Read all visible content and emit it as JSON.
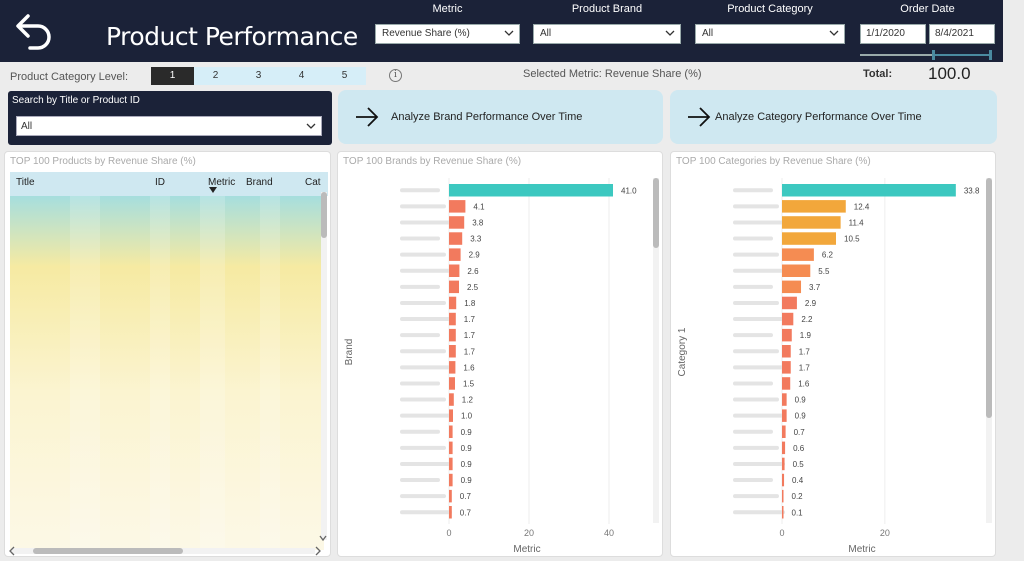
{
  "header": {
    "title": "Product Performance",
    "back_icon": "back-arrow-icon",
    "filters": {
      "metric": {
        "label": "Metric",
        "value": "Revenue Share (%)"
      },
      "brand": {
        "label": "Product Brand",
        "value": "All"
      },
      "category": {
        "label": "Product Category",
        "value": "All"
      },
      "order_date": {
        "label": "Order Date",
        "start": "1/1/2020",
        "end": "8/4/2021"
      }
    }
  },
  "level": {
    "label": "Product Category Level:",
    "options": [
      "1",
      "2",
      "3",
      "4",
      "5"
    ],
    "selected": "1"
  },
  "selected_metric": "Selected Metric: Revenue Share (%)",
  "total": {
    "label": "Total:",
    "value": "100.0"
  },
  "search": {
    "label": "Search by Title or Product ID",
    "value": "All"
  },
  "buttons": {
    "brand_over_time": "Analyze Brand Performance Over Time",
    "category_over_time": "Analyze Category Performance Over Time"
  },
  "products_table": {
    "title": "TOP 100 Products by Revenue Share (%)",
    "columns": [
      "Title",
      "ID",
      "Metric",
      "Brand",
      "Cat"
    ]
  },
  "colors": {
    "header_bg": "#1b2238",
    "accent_teal": "#3cc8c0",
    "bar_orange": "#f27a5e",
    "bar_amber": "#f2a73b",
    "bar_light_orange": "#f58c52",
    "button_bg": "#cfe8f1"
  },
  "chart_data": [
    {
      "type": "bar",
      "orientation": "horizontal",
      "title": "TOP 100 Brands by Revenue Share (%)",
      "xlabel": "Metric",
      "ylabel": "Brand",
      "xticks": [
        "0",
        "20",
        "40"
      ],
      "xlim": [
        0,
        44
      ],
      "values": [
        41.0,
        4.1,
        3.8,
        3.3,
        2.9,
        2.6,
        2.5,
        1.8,
        1.7,
        1.7,
        1.7,
        1.6,
        1.5,
        1.2,
        1.0,
        0.9,
        0.9,
        0.9,
        0.9,
        0.7,
        0.7
      ],
      "labels": [
        "41.0",
        "4.1",
        "3.8",
        "3.3",
        "2.9",
        "2.6",
        "2.5",
        "1.8",
        "1.7",
        "1.7",
        "1.7",
        "1.6",
        "1.5",
        "1.2",
        "1.0",
        "0.9",
        "0.9",
        "0.9",
        "0.9",
        "0.7",
        "0.7"
      ]
    },
    {
      "type": "bar",
      "orientation": "horizontal",
      "title": "TOP 100 Categories by Revenue Share (%)",
      "xlabel": "Metric",
      "ylabel": "Category 1",
      "xticks": [
        "0",
        "20"
      ],
      "xlim": [
        0,
        35
      ],
      "values": [
        33.8,
        12.4,
        11.4,
        10.5,
        6.2,
        5.5,
        3.7,
        2.9,
        2.2,
        1.9,
        1.7,
        1.7,
        1.6,
        0.9,
        0.9,
        0.7,
        0.6,
        0.5,
        0.4,
        0.2,
        0.1
      ],
      "labels": [
        "33.8",
        "12.4",
        "11.4",
        "10.5",
        "6.2",
        "5.5",
        "3.7",
        "2.9",
        "2.2",
        "1.9",
        "1.7",
        "1.7",
        "1.6",
        "0.9",
        "0.9",
        "0.7",
        "0.6",
        "0.5",
        "0.4",
        "0.2",
        "0.1"
      ]
    }
  ]
}
